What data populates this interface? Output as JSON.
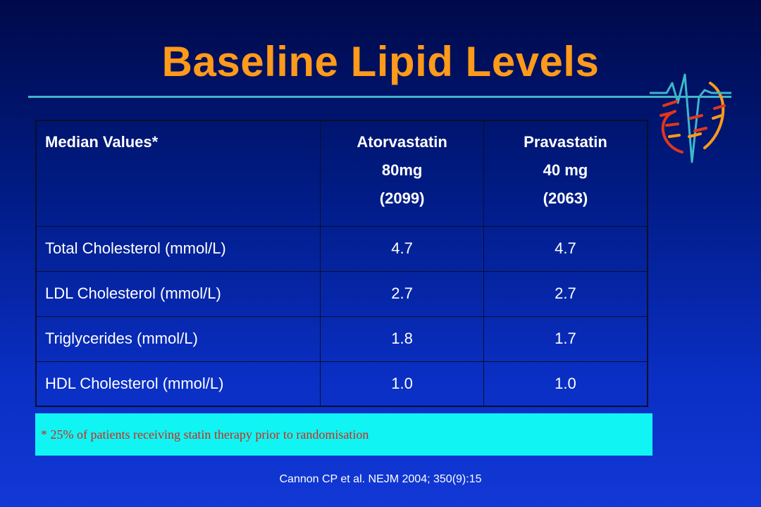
{
  "slide": {
    "title": "Baseline Lipid Levels",
    "accent_color": "#ff9a1a",
    "rule_color": "#3fb6c9"
  },
  "logo": {
    "icon": "heartbeat-logo-icon"
  },
  "table": {
    "headers": [
      {
        "lines": [
          "Median Values*"
        ]
      },
      {
        "lines": [
          "Atorvastatin",
          "80mg",
          "(2099)"
        ]
      },
      {
        "lines": [
          "Pravastatin",
          "40 mg",
          "(2063)"
        ]
      }
    ],
    "rows": [
      [
        "Total Cholesterol (mmol/L)",
        "4.7",
        "4.7"
      ],
      [
        "LDL Cholesterol (mmol/L)",
        "2.7",
        "2.7"
      ],
      [
        "Triglycerides (mmol/L)",
        "1.8",
        "1.7"
      ],
      [
        "HDL Cholesterol (mmol/L)",
        "1.0",
        "1.0"
      ]
    ]
  },
  "footnote": {
    "text": "* 25% of patients receiving statin therapy prior to randomisation",
    "background": "#11f4f4",
    "color": "#cc2a1a"
  },
  "citation": "Cannon CP  et al. NEJM 2004; 350(9):15"
}
